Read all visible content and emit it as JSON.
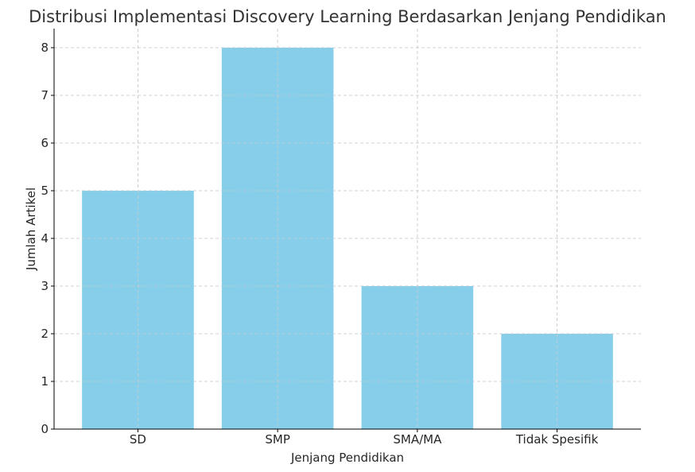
{
  "chart_data": {
    "type": "bar",
    "title": "Distribusi Implementasi Discovery Learning Berdasarkan Jenjang Pendidikan",
    "xlabel": "Jenjang Pendidikan",
    "ylabel": "Jumlah Artikel",
    "categories": [
      "SD",
      "SMP",
      "SMA/MA",
      "Tidak Spesifik"
    ],
    "values": [
      5,
      8,
      3,
      2
    ],
    "ylim": [
      0,
      8.4
    ],
    "yticks": [
      0,
      1,
      2,
      3,
      4,
      5,
      6,
      7,
      8
    ],
    "grid": true,
    "bar_color": "#87CEEB"
  }
}
